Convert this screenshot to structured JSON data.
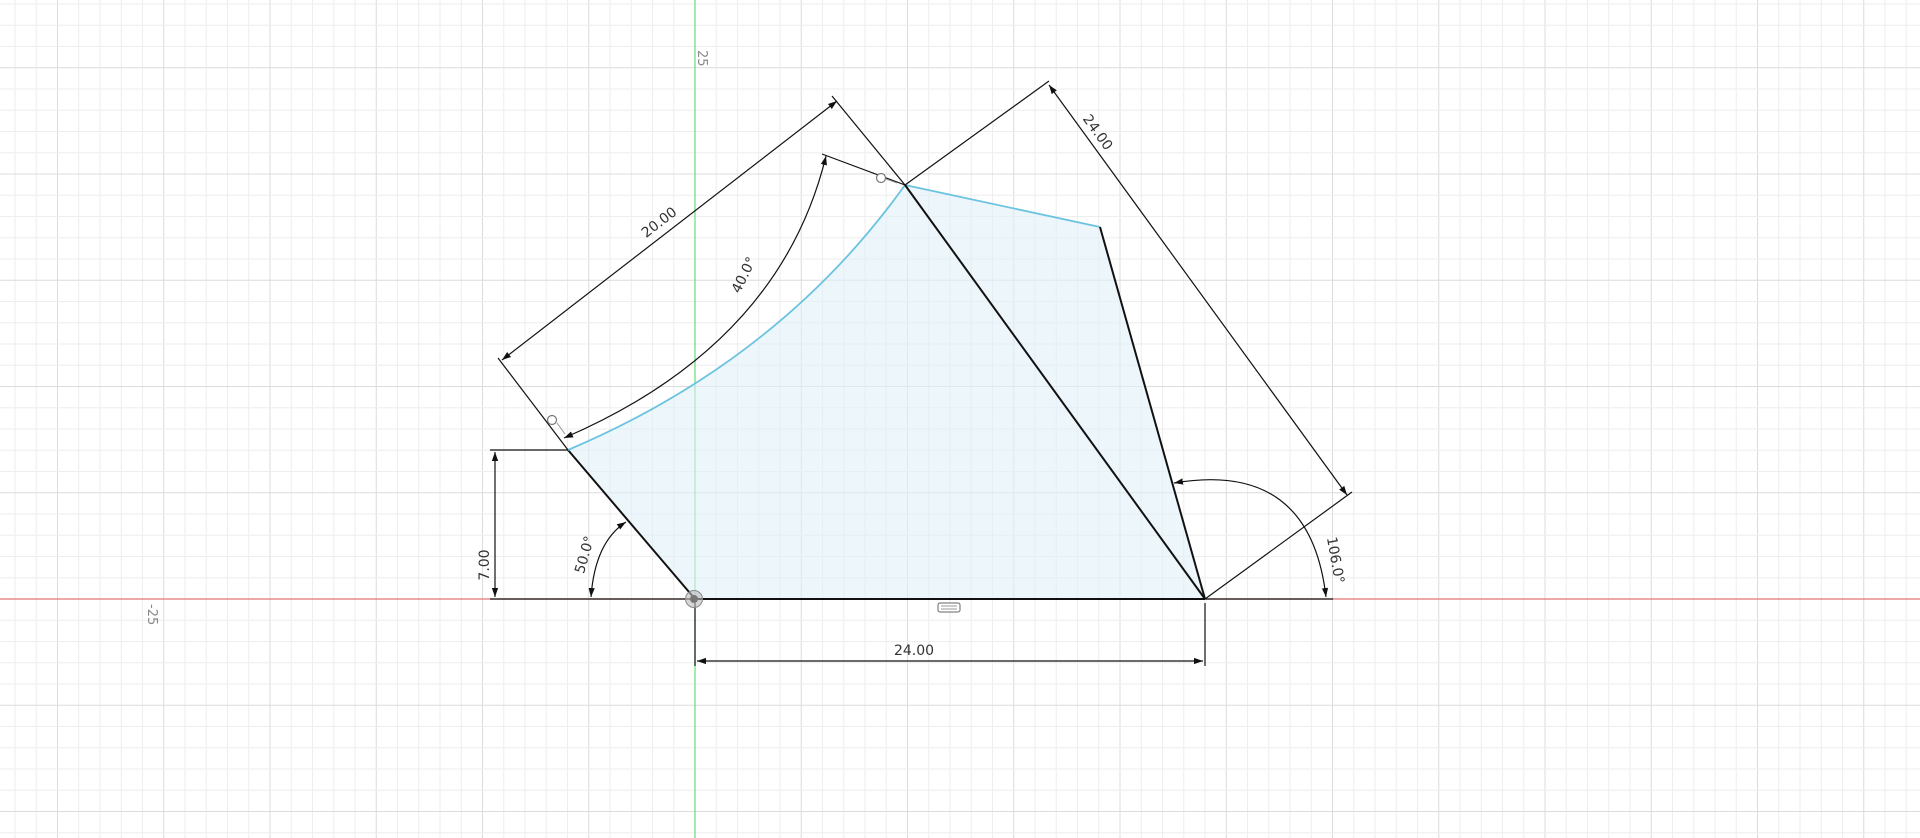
{
  "colors": {
    "background": "#ffffff",
    "grid_minor": "#eeeeee",
    "grid_major": "#dcdcdc",
    "x_axis": "#e57373",
    "y_axis": "#66dd77",
    "sketch_line": "#111111",
    "sketch_highlight": "#6cc3e0",
    "profile_fill": "#dff0f8",
    "origin_marker": "#777777"
  },
  "axis_labels": {
    "y_axis_value": "25",
    "x_axis_value": "-25"
  },
  "dimensions": {
    "top_left_length": "20.00",
    "top_right_length": "24.00",
    "arc_angle": "40.0°",
    "left_angle": "50.0°",
    "left_height": "7.00",
    "right_angle": "106.0°",
    "bottom_length": "24.00"
  },
  "icons": {
    "origin": "origin-point-icon",
    "glyph": "sketch-text-icon",
    "constraint_left": "coincident-constraint-icon",
    "constraint_top": "coincident-constraint-icon"
  }
}
